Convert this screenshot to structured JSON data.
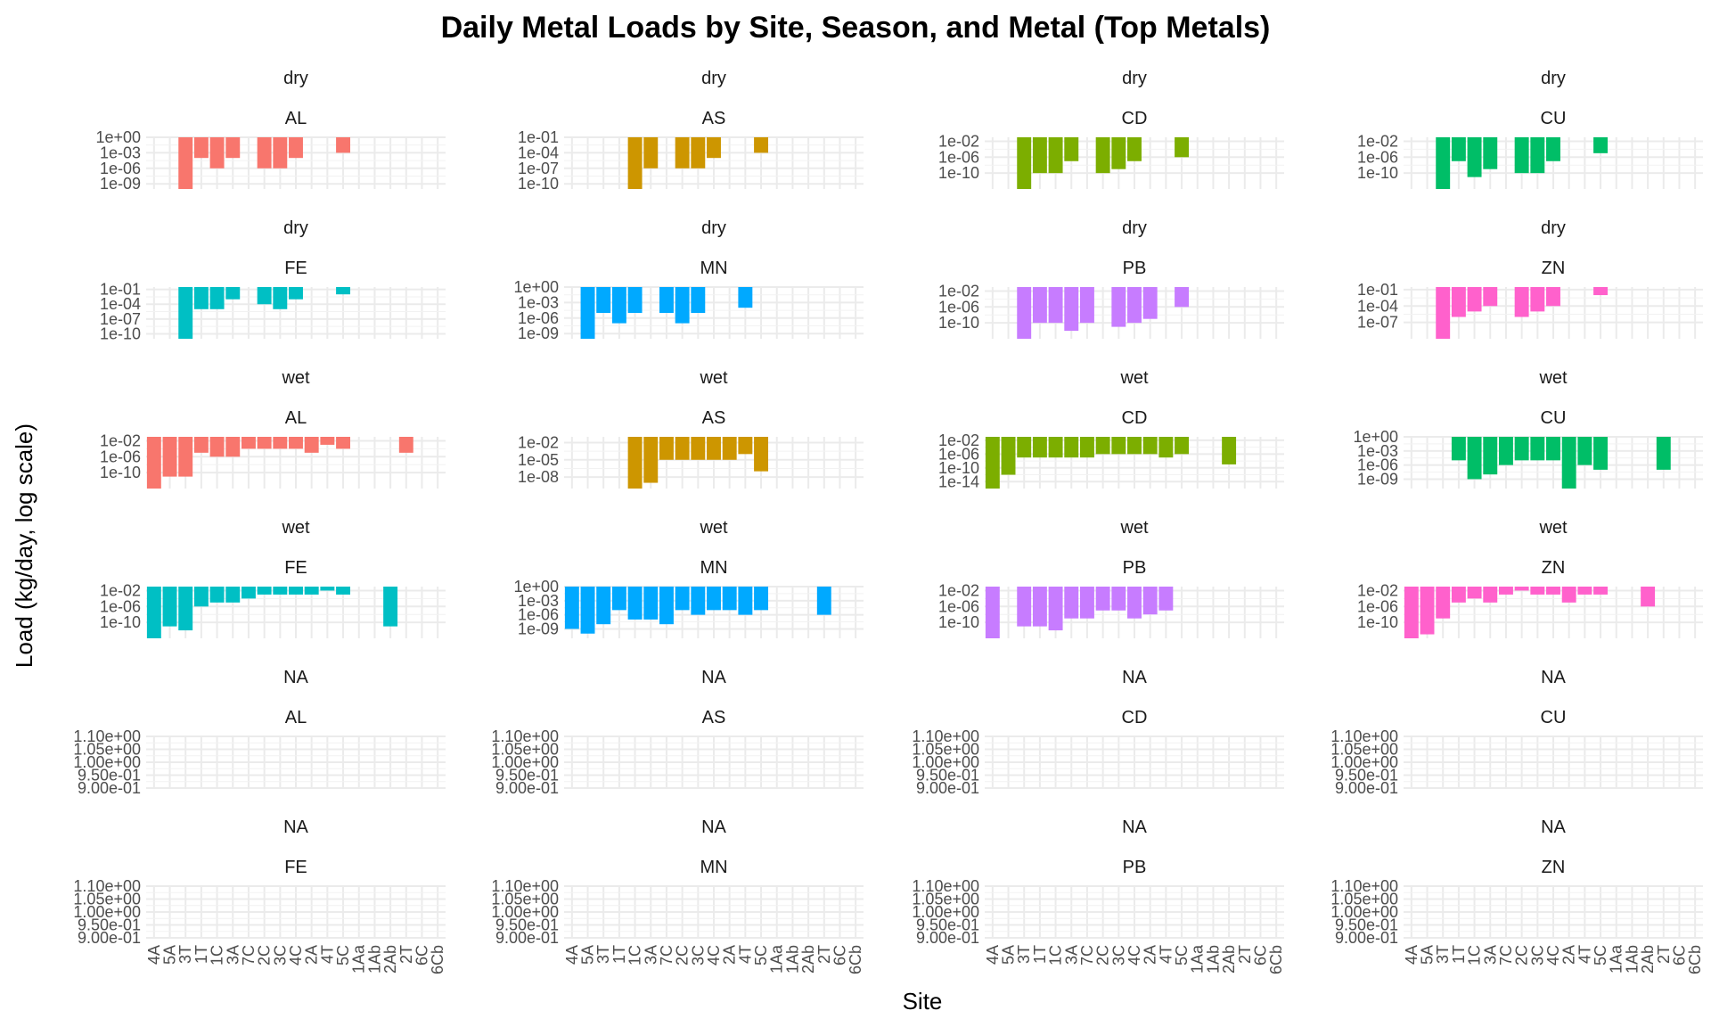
{
  "chart_data": {
    "type": "bar",
    "title": "Daily Metal Loads by Site, Season, and Metal (Top Metals)",
    "xlabel": "Site",
    "ylabel": "Load (kg/day, log scale)",
    "y_scale": "log",
    "grid": true,
    "legend": "none",
    "sites": [
      "4A",
      "5A",
      "3T",
      "1T",
      "1C",
      "3A",
      "7C",
      "2C",
      "3C",
      "4C",
      "2A",
      "4T",
      "5C",
      "1Aa",
      "1Ab",
      "2Ab",
      "2T",
      "6C",
      "6Cb"
    ],
    "metal_colors": {
      "AL": "#F8766D",
      "AS": "#CD9600",
      "CD": "#7CAE00",
      "CU": "#00BE67",
      "FE": "#00BFC4",
      "MN": "#00A9FF",
      "PB": "#C77CFF",
      "ZN": "#FF61CC"
    },
    "panels": [
      {
        "season": "dry",
        "metal": "AL",
        "ticks": [
          "1e+00",
          "1e-03",
          "1e-06",
          "1e-09"
        ],
        "ylim": [
          1e-10,
          1
        ],
        "values": [
          null,
          null,
          1e-10,
          0.0001,
          1e-06,
          0.0001,
          null,
          1e-06,
          1e-06,
          0.0001,
          null,
          null,
          0.001,
          null,
          null,
          null,
          null,
          null,
          null
        ]
      },
      {
        "season": "dry",
        "metal": "AS",
        "ticks": [
          "1e-01",
          "1e-04",
          "1e-07",
          "1e-10"
        ],
        "ylim": [
          1e-11,
          0.1
        ],
        "values": [
          null,
          null,
          null,
          null,
          1e-11,
          1e-07,
          null,
          1e-07,
          1e-07,
          1e-05,
          null,
          null,
          0.0001,
          null,
          null,
          null,
          null,
          null,
          null
        ]
      },
      {
        "season": "dry",
        "metal": "CD",
        "ticks": [
          "1e-02",
          "1e-06",
          "1e-10"
        ],
        "ylim": [
          1e-14,
          0.1
        ],
        "values": [
          null,
          null,
          1e-14,
          1e-10,
          1e-10,
          1e-07,
          null,
          1e-10,
          1e-09,
          1e-07,
          null,
          null,
          1e-06,
          null,
          null,
          null,
          null,
          null,
          null
        ]
      },
      {
        "season": "dry",
        "metal": "CU",
        "ticks": [
          "1e-02",
          "1e-06",
          "1e-10"
        ],
        "ylim": [
          1e-14,
          0.1
        ],
        "values": [
          null,
          null,
          1e-14,
          1e-07,
          1e-11,
          1e-09,
          null,
          1e-10,
          1e-10,
          1e-07,
          null,
          null,
          1e-05,
          null,
          null,
          null,
          null,
          null,
          null
        ]
      },
      {
        "season": "dry",
        "metal": "FE",
        "ticks": [
          "1e-01",
          "1e-04",
          "1e-07",
          "1e-10"
        ],
        "ylim": [
          1e-11,
          0.3
        ],
        "values": [
          null,
          null,
          1e-11,
          1e-05,
          1e-05,
          0.001,
          null,
          0.0001,
          1e-05,
          0.001,
          null,
          null,
          0.01,
          null,
          null,
          null,
          null,
          null,
          null
        ]
      },
      {
        "season": "dry",
        "metal": "MN",
        "ticks": [
          "1e+00",
          "1e-03",
          "1e-06",
          "1e-09"
        ],
        "ylim": [
          1e-10,
          1
        ],
        "values": [
          null,
          1e-10,
          1e-05,
          1e-07,
          1e-05,
          null,
          1e-05,
          1e-07,
          1e-05,
          null,
          null,
          0.0001,
          null,
          null,
          null,
          null,
          null,
          null,
          null
        ]
      },
      {
        "season": "dry",
        "metal": "PB",
        "ticks": [
          "1e-02",
          "1e-06",
          "1e-10"
        ],
        "ylim": [
          1e-14,
          0.1
        ],
        "values": [
          null,
          null,
          1e-14,
          1e-10,
          1e-10,
          1e-12,
          1e-10,
          null,
          1e-11,
          1e-10,
          1e-09,
          null,
          1e-06,
          null,
          null,
          null,
          null,
          null,
          null
        ]
      },
      {
        "season": "dry",
        "metal": "ZN",
        "ticks": [
          "1e-01",
          "1e-04",
          "1e-07"
        ],
        "ylim": [
          1e-10,
          0.3
        ],
        "values": [
          null,
          null,
          1e-10,
          1e-06,
          1e-05,
          0.0001,
          null,
          1e-06,
          1e-05,
          0.0001,
          null,
          null,
          0.01,
          null,
          null,
          null,
          null,
          null,
          null
        ]
      },
      {
        "season": "wet",
        "metal": "AL",
        "ticks": [
          "1e-02",
          "1e-06",
          "1e-10"
        ],
        "ylim": [
          1e-14,
          0.1
        ],
        "values": [
          1e-14,
          1e-11,
          1e-11,
          1e-05,
          1e-06,
          1e-06,
          0.0001,
          0.0001,
          0.0001,
          0.0001,
          1e-05,
          0.001,
          0.0001,
          null,
          null,
          null,
          1e-05,
          null,
          null
        ]
      },
      {
        "season": "wet",
        "metal": "AS",
        "ticks": [
          "1e-02",
          "1e-05",
          "1e-08"
        ],
        "ylim": [
          1e-10,
          0.1
        ],
        "values": [
          null,
          null,
          null,
          null,
          1e-10,
          1e-09,
          1e-05,
          1e-05,
          1e-05,
          1e-05,
          1e-05,
          0.0001,
          1e-07,
          null,
          null,
          null,
          null,
          null,
          null
        ]
      },
      {
        "season": "wet",
        "metal": "CD",
        "ticks": [
          "1e-02",
          "1e-06",
          "1e-10",
          "1e-14"
        ],
        "ylim": [
          1e-16,
          0.1
        ],
        "values": [
          1e-16,
          1e-12,
          1e-07,
          1e-07,
          1e-07,
          1e-07,
          1e-07,
          1e-06,
          1e-06,
          1e-06,
          1e-06,
          1e-07,
          1e-06,
          null,
          null,
          1e-09,
          null,
          null,
          null
        ]
      },
      {
        "season": "wet",
        "metal": "CU",
        "ticks": [
          "1e+00",
          "1e-03",
          "1e-06",
          "1e-09"
        ],
        "ylim": [
          1e-11,
          1
        ],
        "values": [
          null,
          null,
          null,
          1e-05,
          1e-09,
          1e-08,
          1e-06,
          1e-05,
          1e-05,
          1e-05,
          1e-11,
          1e-06,
          1e-07,
          null,
          null,
          null,
          1e-07,
          null,
          null
        ]
      },
      {
        "season": "wet",
        "metal": "FE",
        "ticks": [
          "1e-02",
          "1e-06",
          "1e-10"
        ],
        "ylim": [
          1e-14,
          0.1
        ],
        "values": [
          1e-14,
          1e-11,
          1e-12,
          1e-06,
          1e-05,
          1e-05,
          0.0001,
          0.001,
          0.001,
          0.001,
          0.001,
          0.01,
          0.001,
          null,
          null,
          1e-11,
          null,
          null,
          null
        ]
      },
      {
        "season": "wet",
        "metal": "MN",
        "ticks": [
          "1e+00",
          "1e-03",
          "1e-06",
          "1e-09"
        ],
        "ylim": [
          1e-11,
          1
        ],
        "values": [
          1e-09,
          1e-10,
          1e-08,
          1e-05,
          1e-07,
          1e-07,
          1e-08,
          1e-05,
          1e-06,
          1e-05,
          1e-05,
          1e-06,
          1e-05,
          null,
          null,
          null,
          1e-06,
          null,
          null
        ]
      },
      {
        "season": "wet",
        "metal": "PB",
        "ticks": [
          "1e-02",
          "1e-06",
          "1e-10"
        ],
        "ylim": [
          1e-14,
          0.1
        ],
        "values": [
          1e-14,
          null,
          1e-11,
          1e-11,
          1e-12,
          1e-09,
          1e-09,
          1e-07,
          1e-07,
          1e-09,
          1e-08,
          1e-07,
          null,
          null,
          null,
          null,
          null,
          null,
          null
        ]
      },
      {
        "season": "wet",
        "metal": "ZN",
        "ticks": [
          "1e-02",
          "1e-06",
          "1e-10"
        ],
        "ylim": [
          1e-14,
          0.1
        ],
        "values": [
          1e-14,
          1e-13,
          1e-09,
          1e-05,
          0.0001,
          1e-05,
          0.001,
          0.01,
          0.001,
          0.001,
          1e-05,
          0.001,
          0.001,
          null,
          null,
          1e-06,
          null,
          null,
          null
        ]
      },
      {
        "season": "NA",
        "metal": "AL",
        "ticks": [
          "1.10e+00",
          "1.05e+00",
          "1.00e+00",
          "9.50e-01",
          "9.00e-01"
        ],
        "ylim": [
          0.9,
          1.1
        ],
        "values": []
      },
      {
        "season": "NA",
        "metal": "AS",
        "ticks": [
          "1.10e+00",
          "1.05e+00",
          "1.00e+00",
          "9.50e-01",
          "9.00e-01"
        ],
        "ylim": [
          0.9,
          1.1
        ],
        "values": []
      },
      {
        "season": "NA",
        "metal": "CD",
        "ticks": [
          "1.10e+00",
          "1.05e+00",
          "1.00e+00",
          "9.50e-01",
          "9.00e-01"
        ],
        "ylim": [
          0.9,
          1.1
        ],
        "values": []
      },
      {
        "season": "NA",
        "metal": "CU",
        "ticks": [
          "1.10e+00",
          "1.05e+00",
          "1.00e+00",
          "9.50e-01",
          "9.00e-01"
        ],
        "ylim": [
          0.9,
          1.1
        ],
        "values": []
      },
      {
        "season": "NA",
        "metal": "FE",
        "ticks": [
          "1.10e+00",
          "1.05e+00",
          "1.00e+00",
          "9.50e-01",
          "9.00e-01"
        ],
        "ylim": [
          0.9,
          1.1
        ],
        "values": []
      },
      {
        "season": "NA",
        "metal": "MN",
        "ticks": [
          "1.10e+00",
          "1.05e+00",
          "1.00e+00",
          "9.50e-01",
          "9.00e-01"
        ],
        "ylim": [
          0.9,
          1.1
        ],
        "values": []
      },
      {
        "season": "NA",
        "metal": "PB",
        "ticks": [
          "1.10e+00",
          "1.05e+00",
          "1.00e+00",
          "9.50e-01",
          "9.00e-01"
        ],
        "ylim": [
          0.9,
          1.1
        ],
        "values": []
      },
      {
        "season": "NA",
        "metal": "ZN",
        "ticks": [
          "1.10e+00",
          "1.05e+00",
          "1.00e+00",
          "9.50e-01",
          "9.00e-01"
        ],
        "ylim": [
          0.9,
          1.1
        ],
        "values": []
      }
    ]
  }
}
